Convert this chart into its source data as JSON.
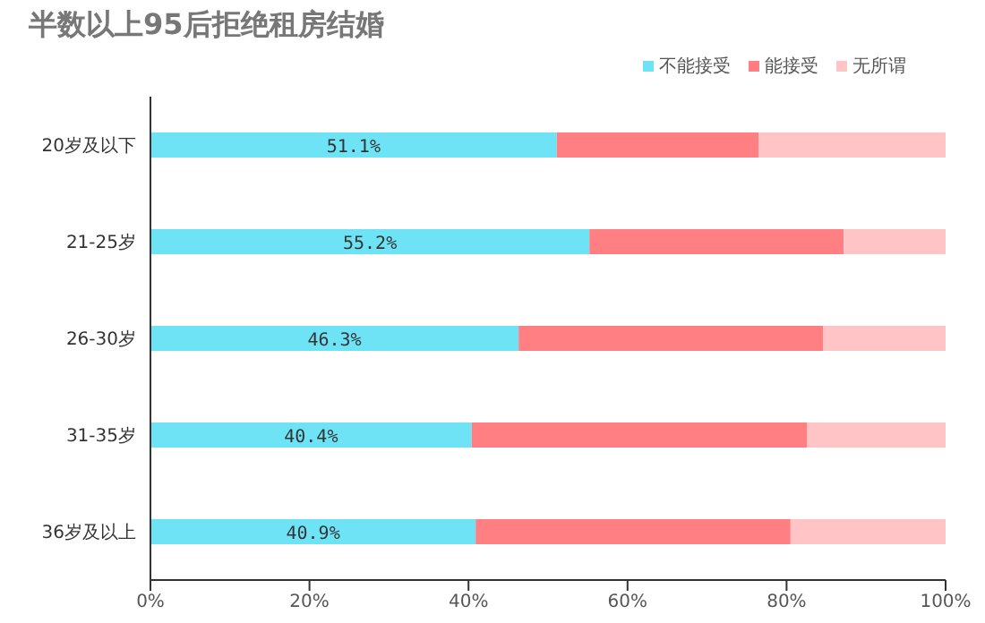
{
  "chart_data": {
    "type": "bar",
    "orientation": "horizontal",
    "stacked": true,
    "title": "半数以上95后拒绝租房结婚",
    "categories": [
      "20岁及以下",
      "21-25岁",
      "26-30岁",
      "31-35岁",
      "36岁及以上"
    ],
    "series": [
      {
        "name": "不能接受",
        "color": "#6ee3f5",
        "values": [
          51.1,
          55.2,
          46.3,
          40.4,
          40.9
        ],
        "value_labels": [
          "51.1%",
          "55.2%",
          "46.3%",
          "40.4%",
          "40.9%"
        ]
      },
      {
        "name": "能接受",
        "color": "#ff7f82",
        "values": [
          25.4,
          32.0,
          38.3,
          42.2,
          39.6
        ]
      },
      {
        "name": "无所谓",
        "color": "#ffc4c6",
        "values": [
          23.5,
          12.8,
          15.4,
          17.4,
          19.5
        ]
      }
    ],
    "xlim": [
      0,
      100
    ],
    "xticks": [
      {
        "value": 0,
        "label": "0%"
      },
      {
        "value": 20,
        "label": "20%"
      },
      {
        "value": 40,
        "label": "40%"
      },
      {
        "value": 60,
        "label": "60%"
      },
      {
        "value": 80,
        "label": "80%"
      },
      {
        "value": 100,
        "label": "100%"
      }
    ],
    "legend": "top right",
    "grid": false
  }
}
